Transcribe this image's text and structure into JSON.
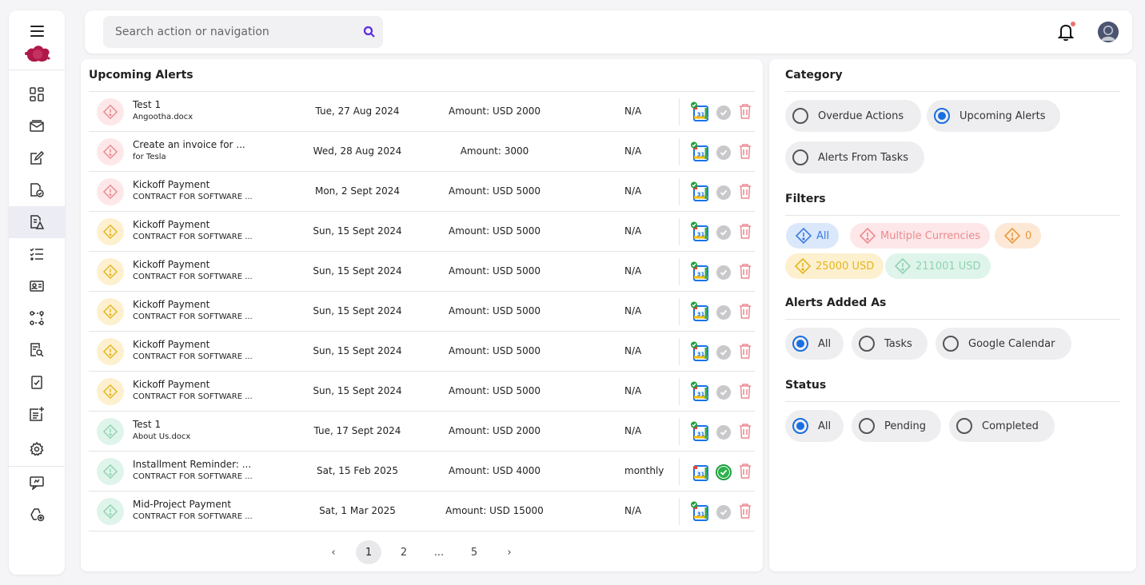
{
  "search": {
    "placeholder": "Search action or navigation"
  },
  "main": {
    "title": "Upcoming Alerts",
    "rows": [
      {
        "title": "Test 1",
        "subtitle": "Angootha.docx",
        "date": "Tue, 27 Aug 2024",
        "amount": "Amount: USD 2000",
        "recurrence": "N/A",
        "severity": "red",
        "synced": true,
        "completed": false
      },
      {
        "title": "Create an invoice for ...",
        "subtitle": "for Tesla",
        "date": "Wed, 28 Aug 2024",
        "amount": "Amount: 3000",
        "recurrence": "N/A",
        "severity": "red",
        "synced": true,
        "completed": false
      },
      {
        "title": "Kickoff Payment",
        "subtitle": "CONTRACT FOR SOFTWARE ...",
        "date": "Mon, 2 Sept 2024",
        "amount": "Amount: USD 5000",
        "recurrence": "N/A",
        "severity": "red",
        "synced": true,
        "completed": false
      },
      {
        "title": "Kickoff Payment",
        "subtitle": "CONTRACT FOR SOFTWARE ...",
        "date": "Sun, 15 Sept 2024",
        "amount": "Amount: USD 5000",
        "recurrence": "N/A",
        "severity": "yellow",
        "synced": true,
        "completed": false
      },
      {
        "title": "Kickoff Payment",
        "subtitle": "CONTRACT FOR SOFTWARE ...",
        "date": "Sun, 15 Sept 2024",
        "amount": "Amount: USD 5000",
        "recurrence": "N/A",
        "severity": "yellow",
        "synced": true,
        "completed": false
      },
      {
        "title": "Kickoff Payment",
        "subtitle": "CONTRACT FOR SOFTWARE ...",
        "date": "Sun, 15 Sept 2024",
        "amount": "Amount: USD 5000",
        "recurrence": "N/A",
        "severity": "yellow",
        "synced": true,
        "completed": false
      },
      {
        "title": "Kickoff Payment",
        "subtitle": "CONTRACT FOR SOFTWARE ...",
        "date": "Sun, 15 Sept 2024",
        "amount": "Amount: USD 5000",
        "recurrence": "N/A",
        "severity": "yellow",
        "synced": true,
        "completed": false
      },
      {
        "title": "Kickoff Payment",
        "subtitle": "CONTRACT FOR SOFTWARE ...",
        "date": "Sun, 15 Sept 2024",
        "amount": "Amount: USD 5000",
        "recurrence": "N/A",
        "severity": "yellow",
        "synced": true,
        "completed": false
      },
      {
        "title": "Test 1",
        "subtitle": "About Us.docx",
        "date": "Tue, 17 Sept 2024",
        "amount": "Amount: USD 2000",
        "recurrence": "N/A",
        "severity": "green",
        "synced": true,
        "completed": false
      },
      {
        "title": "Installment Reminder: ...",
        "subtitle": "CONTRACT FOR SOFTWARE ...",
        "date": "Sat, 15 Feb 2025",
        "amount": "Amount: USD 4000",
        "recurrence": "monthly",
        "severity": "green",
        "synced": false,
        "completed": true
      },
      {
        "title": "Mid-Project Payment",
        "subtitle": "CONTRACT FOR SOFTWARE ...",
        "date": "Sat, 1 Mar 2025",
        "amount": "Amount: USD 15000",
        "recurrence": "N/A",
        "severity": "green",
        "synced": true,
        "completed": false
      }
    ],
    "pagination": {
      "prev": "‹",
      "pages": [
        "1",
        "2",
        "...",
        "5"
      ],
      "current": "1",
      "next": "›"
    }
  },
  "side": {
    "category": {
      "title": "Category",
      "options": [
        "Overdue Actions",
        "Upcoming Alerts",
        "Alerts From Tasks"
      ],
      "selected": "Upcoming Alerts"
    },
    "filters": {
      "title": "Filters",
      "chips": [
        {
          "label": "All",
          "color": "blue"
        },
        {
          "label": "Multiple Currencies",
          "color": "red"
        },
        {
          "label": "0",
          "color": "orange"
        },
        {
          "label": "25000 USD",
          "color": "yellow"
        },
        {
          "label": "211001 USD",
          "color": "green"
        }
      ]
    },
    "added_as": {
      "title": "Alerts Added As",
      "options": [
        "All",
        "Tasks",
        "Google Calendar"
      ],
      "selected": "All"
    },
    "status": {
      "title": "Status",
      "options": [
        "All",
        "Pending",
        "Completed"
      ],
      "selected": "All"
    }
  },
  "icons": {
    "sidebar": [
      "dashboard-icon",
      "inbox-icon",
      "edit-document-icon",
      "document-check-icon",
      "alerts-icon",
      "checklist-icon",
      "contacts-card-icon",
      "workflow-icon",
      "document-search-icon",
      "clipboard-check-icon",
      "add-note-icon",
      "settings-icon",
      "feedback-icon",
      "integrations-icon"
    ]
  },
  "colors": {
    "accent": "#1a6fe0",
    "search_icon": "#5b2be0",
    "trash": "#ec8a90",
    "notification_dot": "#ef6f6f"
  }
}
